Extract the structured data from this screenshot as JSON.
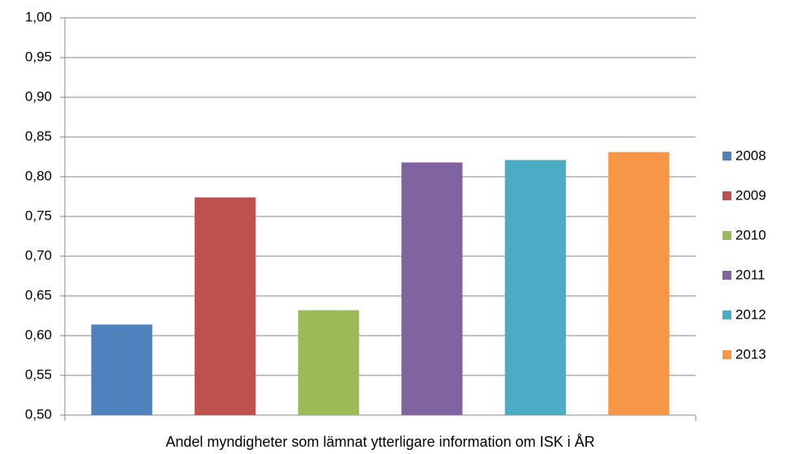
{
  "chart_data": {
    "type": "bar",
    "categories": [
      "Andel myndigheter som lämnat ytterligare information om ISK i ÅR"
    ],
    "series": [
      {
        "name": "2008",
        "color": "#4f81bd",
        "values": [
          0.614
        ]
      },
      {
        "name": "2009",
        "color": "#c0504d",
        "values": [
          0.774
        ]
      },
      {
        "name": "2010",
        "color": "#9bbb59",
        "values": [
          0.632
        ]
      },
      {
        "name": "2011",
        "color": "#8064a2",
        "values": [
          0.818
        ]
      },
      {
        "name": "2012",
        "color": "#4bacc6",
        "values": [
          0.821
        ]
      },
      {
        "name": "2013",
        "color": "#f79646",
        "values": [
          0.831
        ]
      }
    ],
    "ylim": [
      0.5,
      1.0
    ],
    "yticks": [
      {
        "value": 0.5,
        "label": "0,50"
      },
      {
        "value": 0.55,
        "label": "0,55"
      },
      {
        "value": 0.6,
        "label": "0,60"
      },
      {
        "value": 0.65,
        "label": "0,65"
      },
      {
        "value": 0.7,
        "label": "0,70"
      },
      {
        "value": 0.75,
        "label": "0,75"
      },
      {
        "value": 0.8,
        "label": "0,80"
      },
      {
        "value": 0.85,
        "label": "0,85"
      },
      {
        "value": 0.9,
        "label": "0,90"
      },
      {
        "value": 0.95,
        "label": "0,95"
      },
      {
        "value": 1.0,
        "label": "1,00"
      }
    ],
    "grid": true,
    "legend": "right"
  }
}
